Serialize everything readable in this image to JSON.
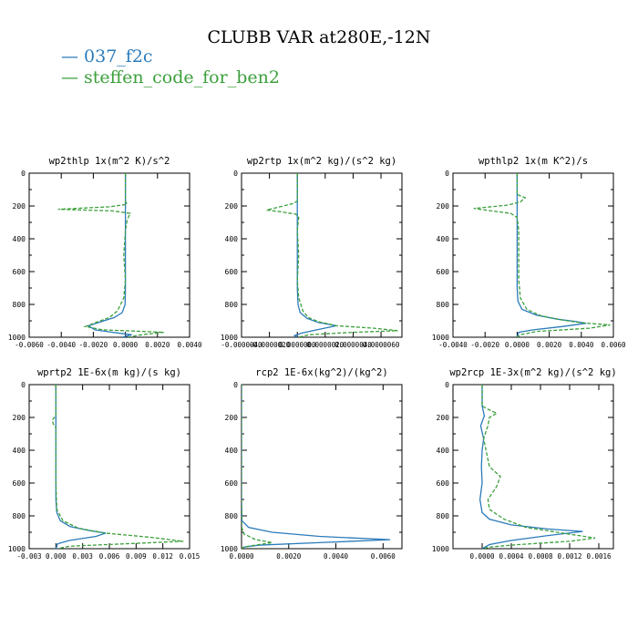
{
  "title": "CLUBB VAR at280E,-12N",
  "legend": [
    {
      "label": "037_f2c",
      "color": "#2b7bba"
    },
    {
      "label": "steffen_code_for_ben2",
      "color": "#3ca03c"
    }
  ],
  "chart_data": [
    {
      "type": "line",
      "title": "wp2thlp  1x(m^2 K)/s^2",
      "xlim": [
        -0.006,
        0.004
      ],
      "xticks": [
        -0.006,
        -0.004,
        -0.002,
        0,
        0.002,
        0.004
      ],
      "xtick_labels": [
        "-0.0060",
        "-0.0040",
        "-0.0020",
        "0.0000",
        "0.0020",
        "0.0040"
      ],
      "ylim": [
        0,
        1000
      ],
      "yticks": [
        0,
        200,
        400,
        600,
        800,
        1000
      ],
      "ytick_labels": [
        "0",
        "200",
        "400",
        "600",
        "800",
        "1000"
      ],
      "series": [
        {
          "name": "037_f2c",
          "color": "#2b7bba",
          "dash": false,
          "points": [
            [
              0,
              0
            ],
            [
              0,
              150
            ],
            [
              0,
              300
            ],
            [
              0,
              500
            ],
            [
              0,
              700
            ],
            [
              -2e-05,
              800
            ],
            [
              -0.0002,
              850
            ],
            [
              -0.0007,
              880
            ],
            [
              -0.0015,
              905
            ],
            [
              -0.0023,
              930
            ],
            [
              -0.0019,
              955
            ],
            [
              -0.0008,
              970
            ],
            [
              0.0004,
              985
            ],
            [
              -0.0002,
              1000
            ]
          ]
        },
        {
          "name": "steffen_code_for_ben2",
          "color": "#3ca03c",
          "dash": true,
          "points": [
            [
              0,
              0
            ],
            [
              0,
              170
            ],
            [
              0.0001,
              190
            ],
            [
              -0.001,
              205
            ],
            [
              -0.0042,
              220
            ],
            [
              -0.0008,
              230
            ],
            [
              0.0003,
              245
            ],
            [
              0.0002,
              265
            ],
            [
              0.0001,
              290
            ],
            [
              0,
              350
            ],
            [
              -0.0001,
              500
            ],
            [
              0,
              650
            ],
            [
              -0.0001,
              760
            ],
            [
              -0.0005,
              840
            ],
            [
              -0.001,
              880
            ],
            [
              -0.0017,
              905
            ],
            [
              -0.0025,
              935
            ],
            [
              -0.0014,
              955
            ],
            [
              0.0024,
              970
            ],
            [
              0.001,
              985
            ],
            [
              0.0002,
              1000
            ]
          ]
        }
      ]
    },
    {
      "type": "line",
      "title": "wp2rtp  1x(m^2 kg)/(s^2 kg)",
      "xlim": [
        -4e-06,
        7.5e-06
      ],
      "xticks": [
        -4e-06,
        -2e-06,
        0,
        2e-06,
        4e-06,
        6e-06
      ],
      "xtick_labels": [
        "-0.0000040",
        "-0.0000020",
        "0.0000000",
        "0.0000020",
        "0.0000040",
        "0.0000060"
      ],
      "ylim": [
        0,
        1000
      ],
      "yticks": [
        0,
        200,
        400,
        600,
        800,
        1000
      ],
      "ytick_labels": [
        "0",
        "200",
        "400",
        "600",
        "800",
        "1000"
      ],
      "series": [
        {
          "name": "037_f2c",
          "color": "#2b7bba",
          "dash": false,
          "points": [
            [
              0,
              0
            ],
            [
              0,
              150
            ],
            [
              0,
              300
            ],
            [
              0,
              500
            ],
            [
              0,
              700
            ],
            [
              5e-08,
              800
            ],
            [
              2e-07,
              850
            ],
            [
              7e-07,
              885
            ],
            [
              1.5e-06,
              910
            ],
            [
              2.8e-06,
              930
            ],
            [
              1.4e-06,
              955
            ],
            [
              3e-07,
              975
            ],
            [
              -2e-07,
              990
            ],
            [
              0,
              1000
            ]
          ]
        },
        {
          "name": "steffen_code_for_ben2",
          "color": "#3ca03c",
          "dash": true,
          "points": [
            [
              0,
              0
            ],
            [
              0,
              170
            ],
            [
              -3e-07,
              185
            ],
            [
              -2.2e-06,
              225
            ],
            [
              -1.2e-06,
              235
            ],
            [
              -1e-07,
              250
            ],
            [
              1e-07,
              270
            ],
            [
              0,
              350
            ],
            [
              1e-07,
              500
            ],
            [
              0,
              650
            ],
            [
              1e-07,
              760
            ],
            [
              4e-07,
              840
            ],
            [
              8e-07,
              880
            ],
            [
              1.5e-06,
              905
            ],
            [
              2.8e-06,
              930
            ],
            [
              5.5e-06,
              945
            ],
            [
              7.2e-06,
              960
            ],
            [
              3.5e-06,
              972
            ],
            [
              8e-07,
              985
            ],
            [
              1e-07,
              1000
            ]
          ]
        }
      ]
    },
    {
      "type": "line",
      "title": "wpthlp2  1x(m K^2)/s",
      "xlim": [
        -0.004,
        0.006
      ],
      "xticks": [
        -0.004,
        -0.002,
        0,
        0.002,
        0.004,
        0.006
      ],
      "xtick_labels": [
        "-0.0040",
        "-0.0020",
        "0.0000",
        "0.0020",
        "0.0040",
        "0.0060"
      ],
      "ylim": [
        0,
        1000
      ],
      "yticks": [
        0,
        200,
        400,
        600,
        800,
        1000
      ],
      "ytick_labels": [
        "0",
        "200",
        "400",
        "600",
        "800",
        "1000"
      ],
      "series": [
        {
          "name": "037_f2c",
          "color": "#2b7bba",
          "dash": false,
          "points": [
            [
              0,
              0
            ],
            [
              0,
              150
            ],
            [
              0,
              300
            ],
            [
              0,
              500
            ],
            [
              0,
              700
            ],
            [
              5e-05,
              780
            ],
            [
              0.0003,
              830
            ],
            [
              0.0012,
              865
            ],
            [
              0.0025,
              890
            ],
            [
              0.0037,
              905
            ],
            [
              0.0043,
              915
            ],
            [
              0.0028,
              935
            ],
            [
              0.001,
              955
            ],
            [
              0.0001,
              970
            ],
            [
              0,
              1000
            ]
          ]
        },
        {
          "name": "steffen_code_for_ben2",
          "color": "#3ca03c",
          "dash": true,
          "points": [
            [
              0,
              0
            ],
            [
              0,
              130
            ],
            [
              0.0005,
              150
            ],
            [
              0.0002,
              175
            ],
            [
              -0.0006,
              195
            ],
            [
              -0.0027,
              215
            ],
            [
              -0.0016,
              230
            ],
            [
              -0.0004,
              245
            ],
            [
              0,
              270
            ],
            [
              0.0001,
              350
            ],
            [
              0.0001,
              500
            ],
            [
              0.0001,
              650
            ],
            [
              0.0002,
              760
            ],
            [
              0.0006,
              830
            ],
            [
              0.0015,
              870
            ],
            [
              0.0028,
              895
            ],
            [
              0.004,
              912
            ],
            [
              0.0058,
              925
            ],
            [
              0.0045,
              945
            ],
            [
              0.0012,
              965
            ],
            [
              0.0002,
              985
            ],
            [
              0,
              1000
            ]
          ]
        }
      ]
    },
    {
      "type": "line",
      "title": "wprtp2  1E-6x(m kg)/(s kg)",
      "xlim": [
        -0.003,
        0.015
      ],
      "xticks": [
        -0.003,
        0,
        0.003,
        0.006,
        0.009,
        0.012,
        0.015
      ],
      "xtick_labels": [
        "-0.003",
        "0.000",
        "0.003",
        "0.006",
        "0.009",
        "0.012",
        "0.015"
      ],
      "ylim": [
        0,
        1000
      ],
      "yticks": [
        0,
        200,
        400,
        600,
        800,
        1000
      ],
      "ytick_labels": [
        "0",
        "200",
        "400",
        "600",
        "800",
        "1000"
      ],
      "series": [
        {
          "name": "037_f2c",
          "color": "#2b7bba",
          "dash": false,
          "points": [
            [
              0,
              0
            ],
            [
              0,
              150
            ],
            [
              0,
              300
            ],
            [
              0,
              500
            ],
            [
              0,
              700
            ],
            [
              0.0001,
              780
            ],
            [
              0.0005,
              830
            ],
            [
              0.0016,
              865
            ],
            [
              0.0038,
              890
            ],
            [
              0.0056,
              905
            ],
            [
              0.0045,
              925
            ],
            [
              0.0015,
              950
            ],
            [
              0.0002,
              970
            ],
            [
              0,
              1000
            ]
          ]
        },
        {
          "name": "steffen_code_for_ben2",
          "color": "#3ca03c",
          "dash": true,
          "points": [
            [
              0,
              0
            ],
            [
              0,
              190
            ],
            [
              -0.0004,
              215
            ],
            [
              -0.0003,
              240
            ],
            [
              0,
              260
            ],
            [
              0,
              400
            ],
            [
              0,
              600
            ],
            [
              0.0001,
              760
            ],
            [
              0.0008,
              830
            ],
            [
              0.0025,
              875
            ],
            [
              0.0055,
              905
            ],
            [
              0.0105,
              930
            ],
            [
              0.0143,
              955
            ],
            [
              0.007,
              972
            ],
            [
              0.0015,
              985
            ],
            [
              0.0002,
              1000
            ]
          ]
        }
      ]
    },
    {
      "type": "line",
      "title": "rcp2  1E-6x(kg^2)/(kg^2)",
      "xlim": [
        0,
        0.0068
      ],
      "xticks": [
        0,
        0.002,
        0.004,
        0.006
      ],
      "xtick_labels": [
        "0.0000",
        "0.0020",
        "0.0040",
        "0.0060"
      ],
      "ylim": [
        0,
        1000
      ],
      "yticks": [
        0,
        200,
        400,
        600,
        800,
        1000
      ],
      "ytick_labels": [
        "0",
        "200",
        "400",
        "600",
        "800",
        "1000"
      ],
      "series": [
        {
          "name": "037_f2c",
          "color": "#2b7bba",
          "dash": false,
          "points": [
            [
              0,
              0
            ],
            [
              0,
              400
            ],
            [
              0,
              700
            ],
            [
              2e-05,
              830
            ],
            [
              0.0003,
              870
            ],
            [
              0.0013,
              900
            ],
            [
              0.0033,
              925
            ],
            [
              0.0063,
              945
            ],
            [
              0.0035,
              962
            ],
            [
              0.0008,
              978
            ],
            [
              0.0001,
              990
            ],
            [
              0,
              1000
            ]
          ]
        },
        {
          "name": "steffen_code_for_ben2",
          "color": "#3ca03c",
          "dash": true,
          "points": [
            [
              0,
              0
            ],
            [
              0,
              400
            ],
            [
              0,
              700
            ],
            [
              1e-05,
              870
            ],
            [
              0.0001,
              910
            ],
            [
              0.0006,
              945
            ],
            [
              0.0013,
              963
            ],
            [
              0.0006,
              978
            ],
            [
              0.0001,
              990
            ],
            [
              0,
              1000
            ]
          ]
        }
      ]
    },
    {
      "type": "line",
      "title": "wp2rcp  1E-3x(m^2 kg)/(s^2 kg)",
      "xlim": [
        -0.0004,
        0.0018
      ],
      "xticks": [
        0,
        0.0004,
        0.0008,
        0.0012,
        0.0016
      ],
      "xtick_labels": [
        "0.0000",
        "0.0004",
        "0.0008",
        "0.0012",
        "0.0016"
      ],
      "ylim": [
        0,
        1000
      ],
      "yticks": [
        0,
        200,
        400,
        600,
        800,
        1000
      ],
      "ytick_labels": [
        "0",
        "200",
        "400",
        "600",
        "800",
        "1000"
      ],
      "series": [
        {
          "name": "037_f2c",
          "color": "#2b7bba",
          "dash": false,
          "points": [
            [
              0,
              0
            ],
            [
              0,
              130
            ],
            [
              3e-05,
              190
            ],
            [
              -2e-05,
              250
            ],
            [
              2e-05,
              330
            ],
            [
              0,
              400
            ],
            [
              -1e-05,
              500
            ],
            [
              0,
              600
            ],
            [
              -3e-05,
              700
            ],
            [
              0,
              780
            ],
            [
              0.0001,
              820
            ],
            [
              0.0004,
              855
            ],
            [
              0.0009,
              880
            ],
            [
              0.00138,
              895
            ],
            [
              0.0009,
              920
            ],
            [
              0.0004,
              950
            ],
            [
              0.0001,
              975
            ],
            [
              0,
              1000
            ]
          ]
        },
        {
          "name": "steffen_code_for_ben2",
          "color": "#3ca03c",
          "dash": true,
          "points": [
            [
              0,
              0
            ],
            [
              0,
              130
            ],
            [
              8e-05,
              150
            ],
            [
              0.0002,
              175
            ],
            [
              0.0001,
              200
            ],
            [
              8e-05,
              250
            ],
            [
              2e-05,
              330
            ],
            [
              0.0001,
              500
            ],
            [
              0.00025,
              560
            ],
            [
              0.0002,
              620
            ],
            [
              8e-05,
              700
            ],
            [
              0.0001,
              760
            ],
            [
              0.0003,
              820
            ],
            [
              0.0006,
              870
            ],
            [
              0.0011,
              905
            ],
            [
              0.00155,
              935
            ],
            [
              0.0012,
              955
            ],
            [
              0.0005,
              975
            ],
            [
              0.0001,
              990
            ],
            [
              0,
              1000
            ]
          ]
        }
      ]
    }
  ]
}
